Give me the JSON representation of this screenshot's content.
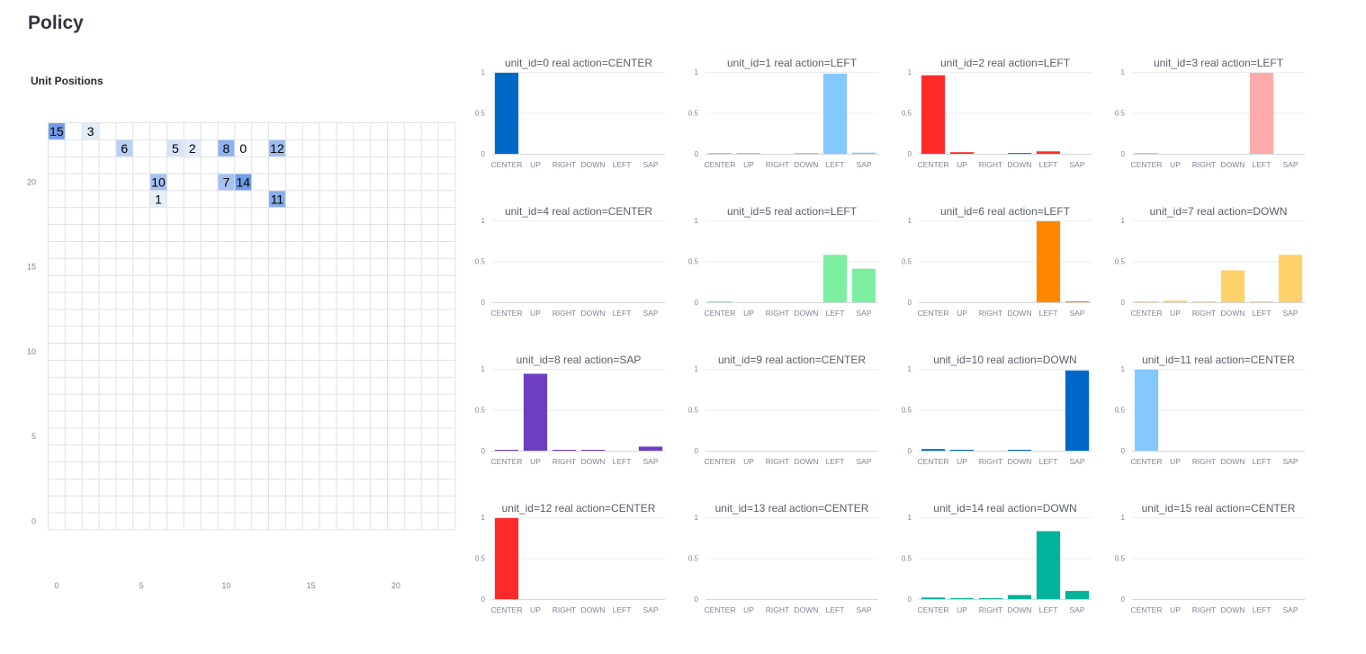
{
  "page": {
    "title": "Policy"
  },
  "grid": {
    "title": "Unit Positions",
    "x_ticks": [
      0,
      5,
      10,
      15,
      20
    ],
    "y_ticks": [
      0,
      5,
      10,
      15,
      20
    ],
    "xlim": [
      0,
      23
    ],
    "ylim": [
      0,
      23
    ],
    "units": [
      {
        "id": "15",
        "x": 0,
        "y": 23,
        "color": "#6f9ee8"
      },
      {
        "id": "3",
        "x": 2,
        "y": 23,
        "color": "#e3ecfa"
      },
      {
        "id": "6",
        "x": 4,
        "y": 22,
        "color": "#b9cff3"
      },
      {
        "id": "5",
        "x": 7,
        "y": 22,
        "color": "#d6e3f8"
      },
      {
        "id": "2",
        "x": 8,
        "y": 22,
        "color": "#e3ecfa"
      },
      {
        "id": "8",
        "x": 10,
        "y": 22,
        "color": "#8fb3ee"
      },
      {
        "id": "0",
        "x": 11,
        "y": 22,
        "color": "#ffffff"
      },
      {
        "id": "12",
        "x": 13,
        "y": 22,
        "color": "#9cbcf0"
      },
      {
        "id": "10",
        "x": 6,
        "y": 20,
        "color": "#a4c1f1"
      },
      {
        "id": "7",
        "x": 10,
        "y": 20,
        "color": "#a4c1f1"
      },
      {
        "id": "14",
        "x": 11,
        "y": 20,
        "color": "#6f9ee8"
      },
      {
        "id": "1",
        "x": 6,
        "y": 19,
        "color": "#e8eff9"
      },
      {
        "id": "11",
        "x": 13,
        "y": 19,
        "color": "#86adec"
      }
    ]
  },
  "chart_data": [
    {
      "type": "bar",
      "title": "unit_id=0   real action=CENTER",
      "categories": [
        "CENTER",
        "UP",
        "RIGHT",
        "DOWN",
        "LEFT",
        "SAP"
      ],
      "values": [
        0.99,
        0,
        0,
        0,
        0,
        0
      ],
      "color": "#0068c9",
      "ylim": [
        0,
        1
      ],
      "y_ticks": [
        "0",
        "0.5",
        "1"
      ]
    },
    {
      "type": "bar",
      "title": "unit_id=1   real action=LEFT",
      "categories": [
        "CENTER",
        "UP",
        "RIGHT",
        "DOWN",
        "LEFT",
        "SAP"
      ],
      "values": [
        0.005,
        0.005,
        0,
        0.005,
        0.98,
        0.015
      ],
      "color": "#83c9ff",
      "ylim": [
        0,
        1
      ],
      "y_ticks": [
        "0",
        "0.5",
        "1"
      ]
    },
    {
      "type": "bar",
      "title": "unit_id=2   real action=LEFT",
      "categories": [
        "CENTER",
        "UP",
        "RIGHT",
        "DOWN",
        "LEFT",
        "SAP"
      ],
      "values": [
        0.96,
        0.02,
        0,
        0.01,
        0.03,
        0
      ],
      "color": "#ff2b2b",
      "ylim": [
        0,
        1
      ],
      "y_ticks": [
        "0",
        "0.5",
        "1"
      ]
    },
    {
      "type": "bar",
      "title": "unit_id=3   real action=LEFT",
      "categories": [
        "CENTER",
        "UP",
        "RIGHT",
        "DOWN",
        "LEFT",
        "SAP"
      ],
      "values": [
        0.005,
        0,
        0,
        0,
        0.99,
        0
      ],
      "color": "#ffabab",
      "ylim": [
        0,
        1
      ],
      "y_ticks": [
        "0",
        "0.5",
        "1"
      ]
    },
    {
      "type": "bar",
      "title": "unit_id=4   real action=CENTER",
      "categories": [
        "CENTER",
        "UP",
        "RIGHT",
        "DOWN",
        "LEFT",
        "SAP"
      ],
      "values": [
        0,
        0,
        0,
        0,
        0,
        0
      ],
      "color": "#29b09d",
      "ylim": [
        0,
        1
      ],
      "y_ticks": [
        "0",
        "0.5",
        "1"
      ]
    },
    {
      "type": "bar",
      "title": "unit_id=5   real action=LEFT",
      "categories": [
        "CENTER",
        "UP",
        "RIGHT",
        "DOWN",
        "LEFT",
        "SAP"
      ],
      "values": [
        0.005,
        0,
        0,
        0,
        0.58,
        0.41
      ],
      "color": "#7defa1",
      "ylim": [
        0,
        1
      ],
      "y_ticks": [
        "0",
        "0.5",
        "1"
      ]
    },
    {
      "type": "bar",
      "title": "unit_id=6   real action=LEFT",
      "categories": [
        "CENTER",
        "UP",
        "RIGHT",
        "DOWN",
        "LEFT",
        "SAP"
      ],
      "values": [
        0,
        0,
        0,
        0,
        0.99,
        0.005
      ],
      "color": "#ff8700",
      "ylim": [
        0,
        1
      ],
      "y_ticks": [
        "0",
        "0.5",
        "1"
      ]
    },
    {
      "type": "bar",
      "title": "unit_id=7   real action=DOWN",
      "categories": [
        "CENTER",
        "UP",
        "RIGHT",
        "DOWN",
        "LEFT",
        "SAP"
      ],
      "values": [
        0.005,
        0.02,
        0.005,
        0.39,
        0.005,
        0.58
      ],
      "color": "#ffd16a",
      "ylim": [
        0,
        1
      ],
      "y_ticks": [
        "0",
        "0.5",
        "1"
      ]
    },
    {
      "type": "bar",
      "title": "unit_id=8   real action=SAP",
      "categories": [
        "CENTER",
        "UP",
        "RIGHT",
        "DOWN",
        "LEFT",
        "SAP"
      ],
      "values": [
        0.005,
        0.94,
        0.005,
        0.005,
        0,
        0.05
      ],
      "color": "#6d3fc0",
      "ylim": [
        0,
        1
      ],
      "y_ticks": [
        "0",
        "0.5",
        "1"
      ]
    },
    {
      "type": "bar",
      "title": "unit_id=9   real action=CENTER",
      "categories": [
        "CENTER",
        "UP",
        "RIGHT",
        "DOWN",
        "LEFT",
        "SAP"
      ],
      "values": [
        0,
        0,
        0,
        0,
        0,
        0
      ],
      "color": "#d5dae5",
      "ylim": [
        0,
        1
      ],
      "y_ticks": [
        "0",
        "0.5",
        "1"
      ]
    },
    {
      "type": "bar",
      "title": "unit_id=10   real action=DOWN",
      "categories": [
        "CENTER",
        "UP",
        "RIGHT",
        "DOWN",
        "LEFT",
        "SAP"
      ],
      "values": [
        0.02,
        0.005,
        0,
        0.005,
        0,
        0.98
      ],
      "color": "#0068c9",
      "ylim": [
        0,
        1
      ],
      "y_ticks": [
        "0",
        "0.5",
        "1"
      ]
    },
    {
      "type": "bar",
      "title": "unit_id=11   real action=CENTER",
      "categories": [
        "CENTER",
        "UP",
        "RIGHT",
        "DOWN",
        "LEFT",
        "SAP"
      ],
      "values": [
        0.99,
        0,
        0,
        0,
        0,
        0
      ],
      "color": "#83c9ff",
      "ylim": [
        0,
        1
      ],
      "y_ticks": [
        "0",
        "0.5",
        "1"
      ]
    },
    {
      "type": "bar",
      "title": "unit_id=12   real action=CENTER",
      "categories": [
        "CENTER",
        "UP",
        "RIGHT",
        "DOWN",
        "LEFT",
        "SAP"
      ],
      "values": [
        0.99,
        0,
        0,
        0,
        0,
        0
      ],
      "color": "#ff2b2b",
      "ylim": [
        0,
        1
      ],
      "y_ticks": [
        "0",
        "0.5",
        "1"
      ]
    },
    {
      "type": "bar",
      "title": "unit_id=13   real action=CENTER",
      "categories": [
        "CENTER",
        "UP",
        "RIGHT",
        "DOWN",
        "LEFT",
        "SAP"
      ],
      "values": [
        0,
        0,
        0,
        0,
        0,
        0
      ],
      "color": "#ffabab",
      "ylim": [
        0,
        1
      ],
      "y_ticks": [
        "0",
        "0.5",
        "1"
      ]
    },
    {
      "type": "bar",
      "title": "unit_id=14   real action=DOWN",
      "categories": [
        "CENTER",
        "UP",
        "RIGHT",
        "DOWN",
        "LEFT",
        "SAP"
      ],
      "values": [
        0.02,
        0.005,
        0.005,
        0.05,
        0.83,
        0.1
      ],
      "color": "#00b39a",
      "ylim": [
        0,
        1
      ],
      "y_ticks": [
        "0",
        "0.5",
        "1"
      ]
    },
    {
      "type": "bar",
      "title": "unit_id=15   real action=CENTER",
      "categories": [
        "CENTER",
        "UP",
        "RIGHT",
        "DOWN",
        "LEFT",
        "SAP"
      ],
      "values": [
        0,
        0,
        0,
        0,
        0,
        0
      ],
      "color": "#7defa1",
      "ylim": [
        0,
        1
      ],
      "y_ticks": [
        "0",
        "0.5",
        "1"
      ]
    }
  ]
}
